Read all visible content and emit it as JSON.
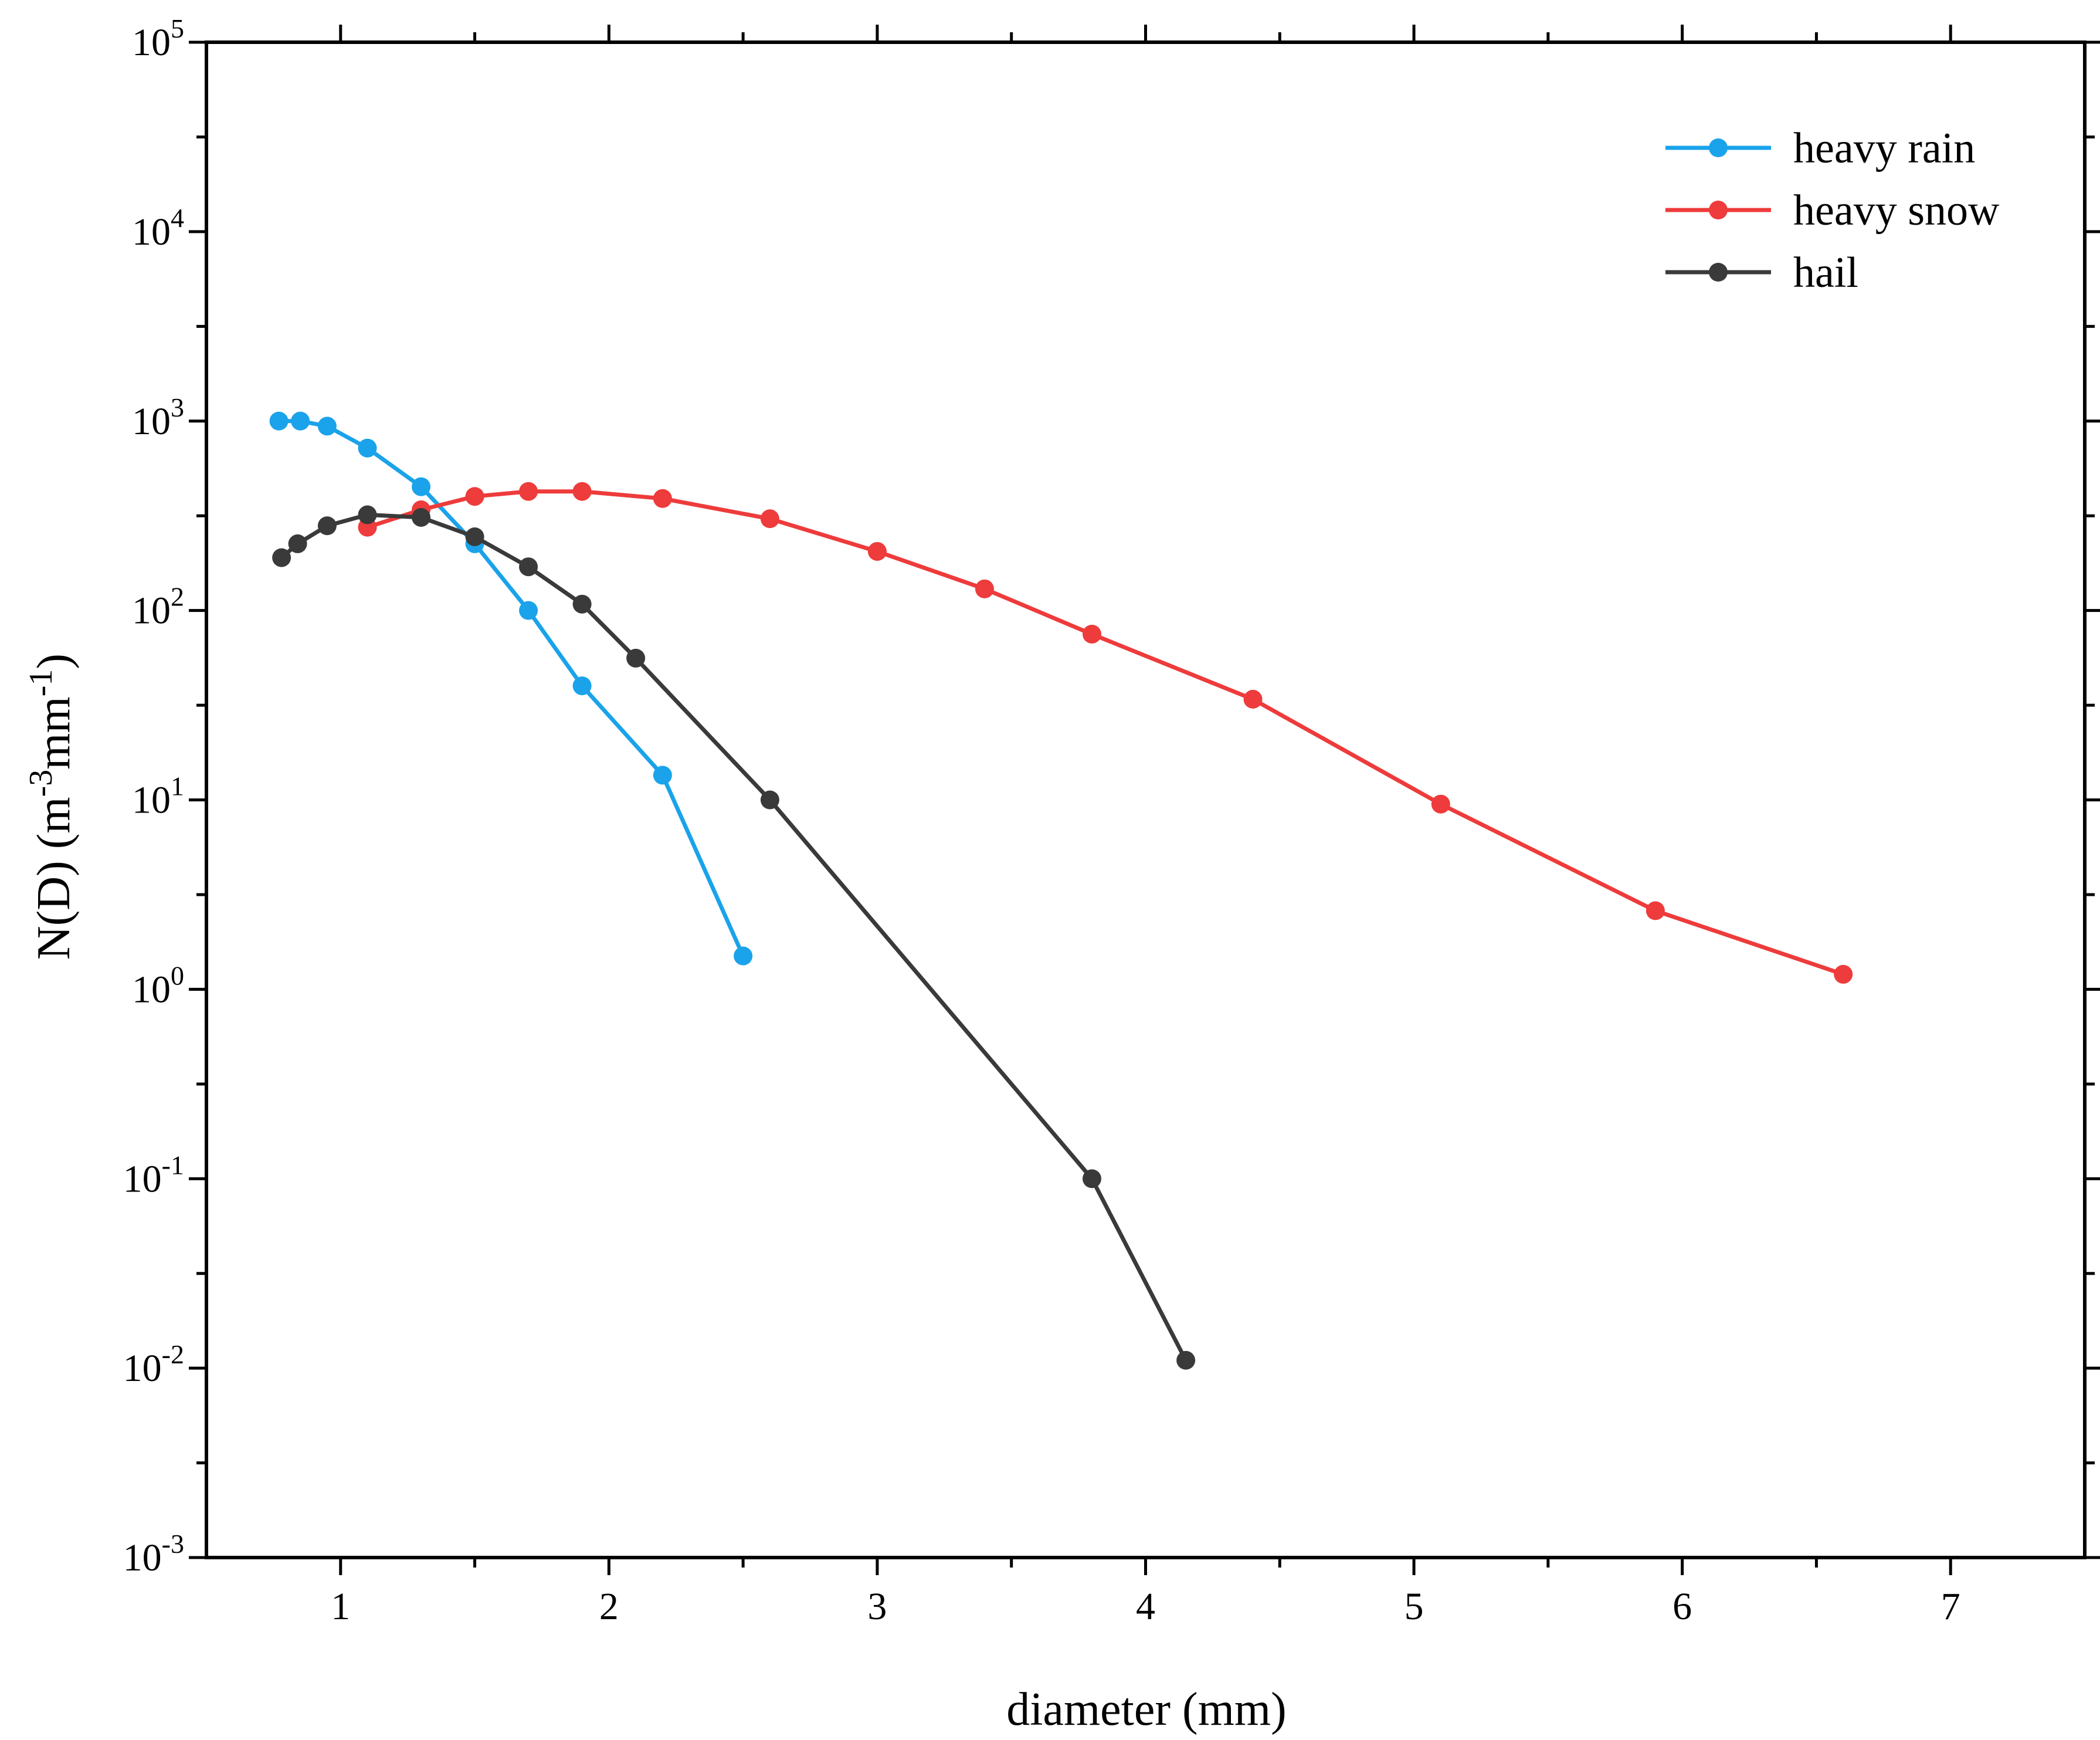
{
  "chart_data": {
    "type": "line",
    "title": "",
    "xlabel": "diameter (mm)",
    "ylabel": {
      "base": "N(D) (m",
      "sup1": "-3",
      "mid": "mm",
      "sup2": "-1",
      "end": ")"
    },
    "xlim": [
      0.5,
      7.5
    ],
    "ylim_log10": [
      -3,
      5
    ],
    "yscale": "log",
    "x_ticks": [
      1,
      2,
      3,
      4,
      5,
      6,
      7
    ],
    "y_ticks": [
      {
        "exp": -3,
        "base": "10",
        "sup": "-3"
      },
      {
        "exp": -2,
        "base": "10",
        "sup": "-2"
      },
      {
        "exp": -1,
        "base": "10",
        "sup": "-1"
      },
      {
        "exp": 0,
        "base": "10",
        "sup": "0"
      },
      {
        "exp": 1,
        "base": "10",
        "sup": "1"
      },
      {
        "exp": 2,
        "base": "10",
        "sup": "2"
      },
      {
        "exp": 3,
        "base": "10",
        "sup": "3"
      },
      {
        "exp": 4,
        "base": "10",
        "sup": "4"
      },
      {
        "exp": 5,
        "base": "10",
        "sup": "5"
      }
    ],
    "legend_position": "top-right",
    "series": [
      {
        "name": "heavy rain",
        "color": "#1AA3EA",
        "x": [
          0.77,
          0.85,
          0.95,
          1.1,
          1.3,
          1.5,
          1.7,
          1.9,
          2.2,
          2.5
        ],
        "y": [
          1000,
          1000,
          940,
          720,
          450,
          225,
          100,
          40,
          13.5,
          1.5
        ]
      },
      {
        "name": "heavy snow",
        "color": "#EE3B3B",
        "x": [
          1.1,
          1.3,
          1.5,
          1.7,
          1.9,
          2.2,
          2.6,
          3.0,
          3.4,
          3.8,
          4.4,
          5.1,
          5.9,
          6.6
        ],
        "y": [
          275,
          340,
          400,
          425,
          425,
          390,
          305,
          205,
          130,
          75,
          34,
          9.5,
          2.6,
          1.2
        ]
      },
      {
        "name": "hail",
        "color": "#3A3A3A",
        "x": [
          0.78,
          0.84,
          0.95,
          1.1,
          1.3,
          1.5,
          1.7,
          1.9,
          2.1,
          2.6,
          3.8,
          4.15
        ],
        "y": [
          190,
          225,
          280,
          320,
          310,
          245,
          170,
          108,
          56,
          10,
          0.1,
          0.011
        ]
      }
    ]
  }
}
